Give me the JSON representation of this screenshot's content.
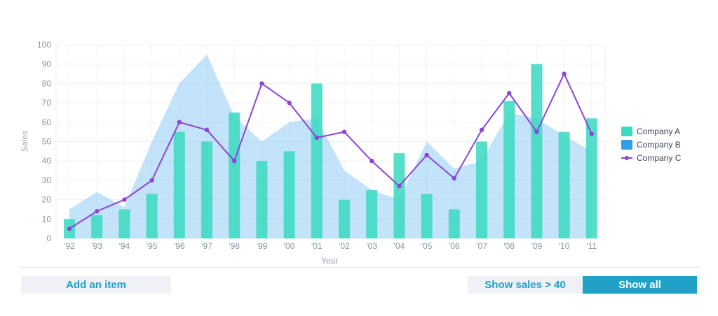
{
  "chart_data": {
    "type": "bar",
    "xlabel": "Year",
    "ylabel": "Sales",
    "ylim": [
      0,
      100
    ],
    "yticks": [
      0,
      10,
      20,
      30,
      40,
      50,
      60,
      70,
      80,
      90,
      100
    ],
    "categories": [
      "'92",
      "'93",
      "'94",
      "'95",
      "'96",
      "'97",
      "'98",
      "'99",
      "'00",
      "'01",
      "'02",
      "'03",
      "'04",
      "'05",
      "'06",
      "'07",
      "'08",
      "'09",
      "'10",
      "'11"
    ],
    "grid": true,
    "legend_position": "right",
    "series": [
      {
        "name": "Company A",
        "type": "bar",
        "color": "#3dd9c0",
        "values": [
          10,
          12,
          15,
          23,
          55,
          50,
          65,
          40,
          45,
          80,
          20,
          25,
          44,
          23,
          15,
          50,
          71,
          90,
          55,
          62
        ]
      },
      {
        "name": "Company B",
        "type": "area",
        "color": "#2e9ee8",
        "values": [
          15,
          24,
          16,
          50,
          80,
          95,
          63,
          50,
          60,
          62,
          35,
          25,
          20,
          50,
          36,
          40,
          65,
          62,
          53,
          45
        ]
      },
      {
        "name": "Company C",
        "type": "line",
        "color": "#8e44d6",
        "values": [
          5,
          14,
          20,
          30,
          60,
          56,
          40,
          80,
          70,
          52,
          55,
          40,
          27,
          43,
          31,
          56,
          75,
          55,
          85,
          54
        ]
      }
    ]
  },
  "buttons": {
    "add_item": "Add an item",
    "show_sales_filter": "Show sales > 40",
    "show_all": "Show all"
  }
}
